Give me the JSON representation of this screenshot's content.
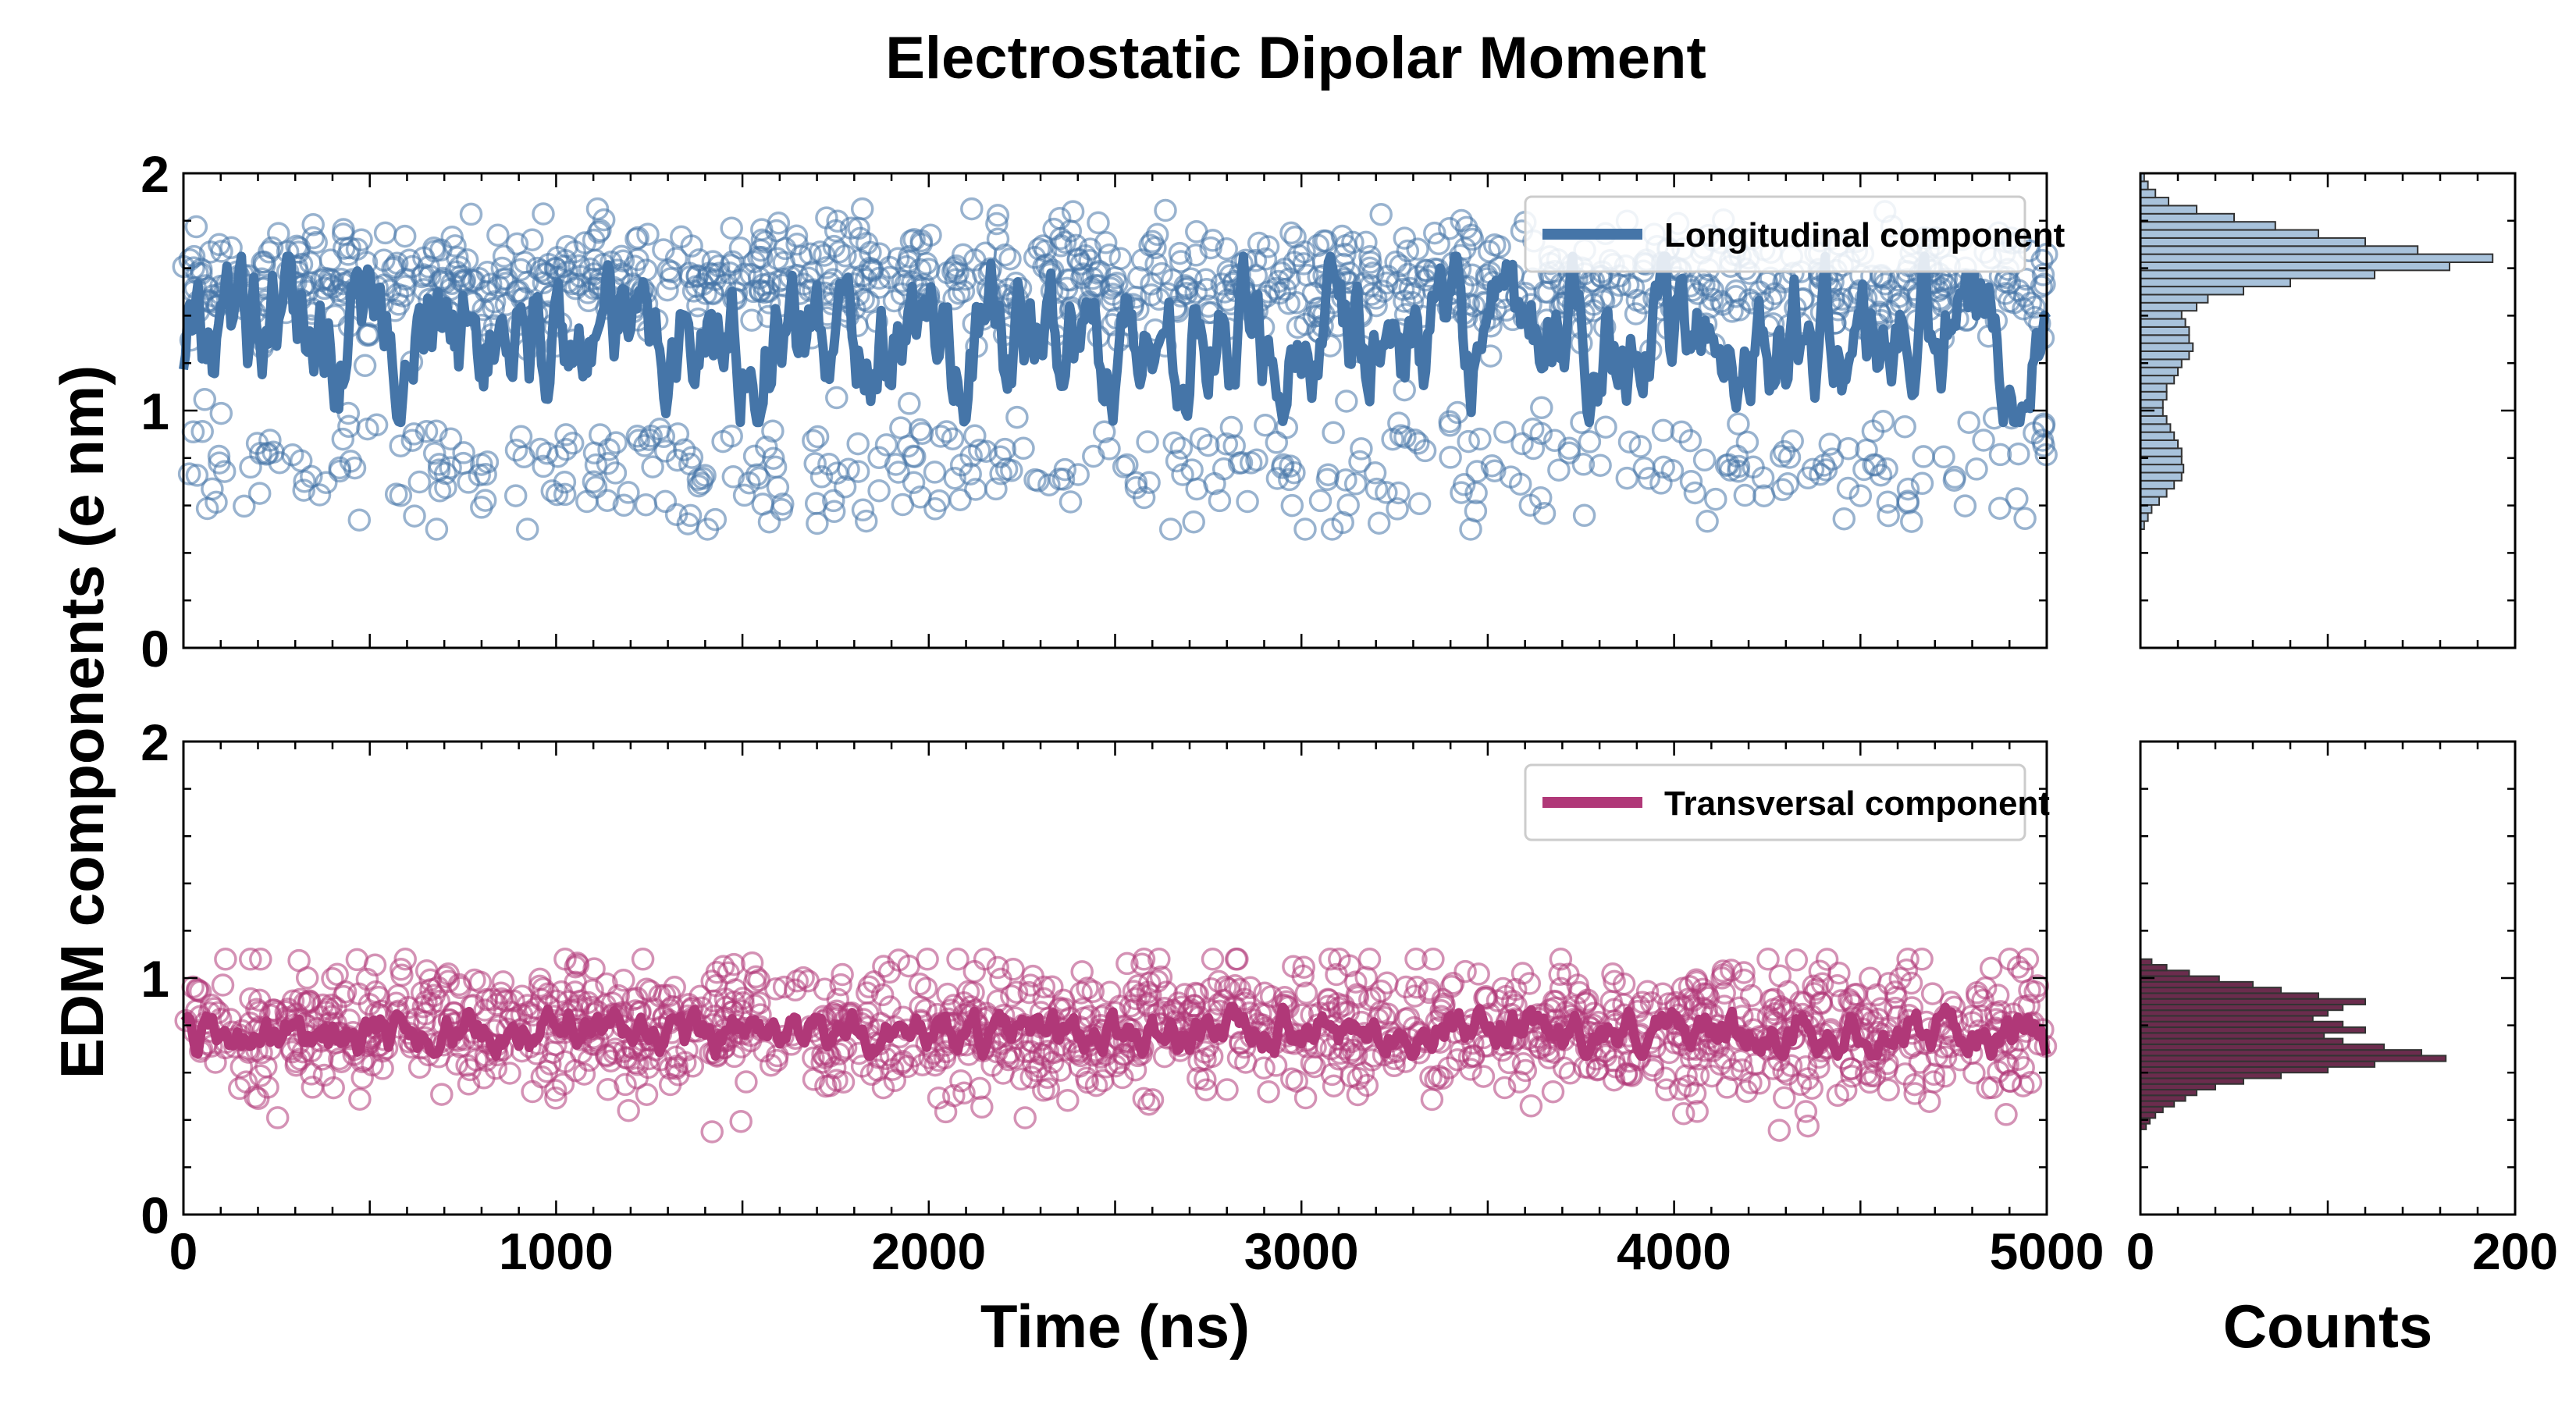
{
  "title": "Electrostatic Dipolar Moment",
  "ylabel": "EDM components (e nm)",
  "chart_data": [
    {
      "type": "scatter",
      "panel": "top-main",
      "series": [
        {
          "name": "Longitudinal component",
          "color": "#4575a8"
        }
      ],
      "xlim": [
        0,
        5000
      ],
      "ylim": [
        0,
        2
      ],
      "xticks": [
        0,
        1000,
        2000,
        3000,
        4000,
        5000
      ],
      "yticks": [
        0,
        1,
        2
      ],
      "scatter_profile": {
        "upper_mean": 1.55,
        "upper_spread": 0.12,
        "lower_mean": 0.75,
        "lower_spread": 0.12,
        "min": 0.5,
        "max": 1.85
      },
      "running_mean": {
        "mean": 1.3,
        "min": 0.95,
        "max": 1.65
      },
      "legend_position": "top-right"
    },
    {
      "type": "bar",
      "panel": "top-histogram",
      "orientation": "horizontal",
      "xlim": [
        0,
        200
      ],
      "xticks": [
        0,
        200
      ],
      "ylim": [
        0,
        2
      ],
      "color": "#a8c2db",
      "bin_edges": [
        0.5,
        2.0
      ],
      "counts": [
        2,
        4,
        6,
        10,
        14,
        18,
        22,
        23,
        22,
        22,
        20,
        18,
        16,
        14,
        12,
        12,
        14,
        14,
        18,
        20,
        22,
        26,
        28,
        26,
        26,
        24,
        22,
        30,
        36,
        55,
        80,
        125,
        165,
        188,
        148,
        120,
        95,
        72,
        50,
        30,
        15,
        8,
        4,
        2
      ]
    },
    {
      "type": "scatter",
      "panel": "bottom-main",
      "series": [
        {
          "name": "Transversal component",
          "color": "#b03878"
        }
      ],
      "xlabel": "Time (ns)",
      "xlim": [
        0,
        5000
      ],
      "ylim": [
        0,
        2
      ],
      "xticks": [
        0,
        1000,
        2000,
        3000,
        4000,
        5000
      ],
      "yticks": [
        0,
        1,
        2
      ],
      "scatter_profile": {
        "mean": 0.78,
        "spread": 0.14,
        "min": 0.35,
        "max": 1.08
      },
      "running_mean": {
        "mean": 0.77,
        "min": 0.67,
        "max": 0.88
      },
      "legend_position": "top-right"
    },
    {
      "type": "bar",
      "panel": "bottom-histogram",
      "orientation": "horizontal",
      "xlabel": "Counts",
      "xlim": [
        0,
        200
      ],
      "xticks": [
        0,
        200
      ],
      "ylim": [
        0,
        2
      ],
      "color": "#6b2c4d",
      "bin_edges": [
        0.36,
        1.08
      ],
      "counts": [
        3,
        5,
        8,
        12,
        18,
        24,
        30,
        40,
        55,
        75,
        100,
        125,
        163,
        150,
        130,
        108,
        98,
        120,
        108,
        92,
        100,
        108,
        120,
        95,
        75,
        60,
        42,
        26,
        14,
        6
      ]
    }
  ]
}
